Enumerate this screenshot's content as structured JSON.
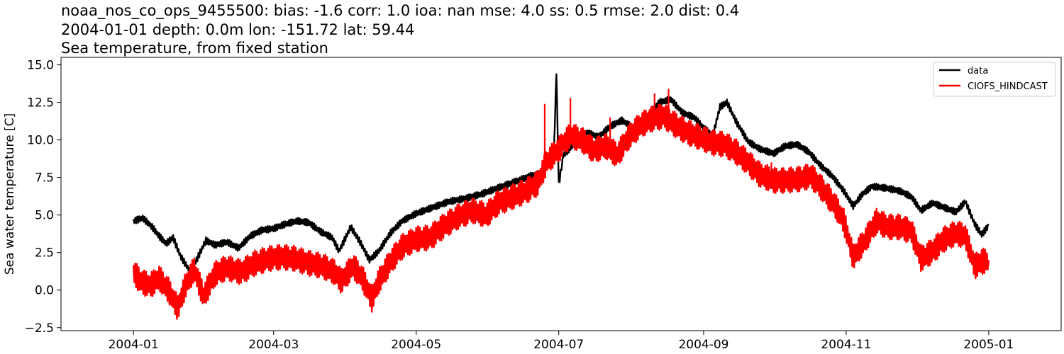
{
  "chart_data": {
    "type": "line",
    "title_lines": [
      "noaa_nos_co_ops_9455500: bias: -1.6  corr: 1.0  ioa: nan  mse: 4.0  ss: 0.5  rmse: 2.0  dist: 0.4",
      "2004-01-01 depth: 0.0m lon: -151.72 lat: 59.44",
      "Sea temperature, from fixed station"
    ],
    "xlabel": "",
    "ylabel": "Sea water temperature [C]",
    "xlim": [
      "2003-12-01",
      "2005-02-01"
    ],
    "ylim": [
      -2.7,
      15.5
    ],
    "x_ticks": [
      {
        "date": "2004-01-01",
        "label": "2004-01"
      },
      {
        "date": "2004-03-01",
        "label": "2004-03"
      },
      {
        "date": "2004-05-01",
        "label": "2004-05"
      },
      {
        "date": "2004-07-01",
        "label": "2004-07"
      },
      {
        "date": "2004-09-01",
        "label": "2004-09"
      },
      {
        "date": "2004-11-01",
        "label": "2004-11"
      },
      {
        "date": "2005-01-01",
        "label": "2005-01"
      }
    ],
    "y_ticks": [
      {
        "value": -2.5,
        "label": "−2.5"
      },
      {
        "value": 0.0,
        "label": "0.0"
      },
      {
        "value": 2.5,
        "label": "2.5"
      },
      {
        "value": 5.0,
        "label": "5.0"
      },
      {
        "value": 7.5,
        "label": "7.5"
      },
      {
        "value": 10.0,
        "label": "10.0"
      },
      {
        "value": 12.5,
        "label": "12.5"
      },
      {
        "value": 15.0,
        "label": "15.0"
      }
    ],
    "grid": false,
    "legend_position": "top-right",
    "series": [
      {
        "name": "data",
        "color": "#000000",
        "points": [
          [
            "2004-01-01",
            4.6
          ],
          [
            "2004-01-05",
            4.8
          ],
          [
            "2004-01-09",
            4.2
          ],
          [
            "2004-01-12",
            3.6
          ],
          [
            "2004-01-15",
            3.1
          ],
          [
            "2004-01-18",
            3.5
          ],
          [
            "2004-01-21",
            2.3
          ],
          [
            "2004-01-25",
            1.3
          ],
          [
            "2004-01-28",
            2.0
          ],
          [
            "2004-02-01",
            3.3
          ],
          [
            "2004-02-05",
            3.0
          ],
          [
            "2004-02-10",
            3.2
          ],
          [
            "2004-02-15",
            2.8
          ],
          [
            "2004-02-20",
            3.6
          ],
          [
            "2004-02-25",
            4.0
          ],
          [
            "2004-03-01",
            4.1
          ],
          [
            "2004-03-06",
            4.4
          ],
          [
            "2004-03-11",
            4.6
          ],
          [
            "2004-03-16",
            4.5
          ],
          [
            "2004-03-21",
            3.9
          ],
          [
            "2004-03-26",
            3.5
          ],
          [
            "2004-03-29",
            2.6
          ],
          [
            "2004-04-03",
            4.2
          ],
          [
            "2004-04-07",
            3.2
          ],
          [
            "2004-04-11",
            2.0
          ],
          [
            "2004-04-15",
            2.6
          ],
          [
            "2004-04-20",
            3.8
          ],
          [
            "2004-04-25",
            4.6
          ],
          [
            "2004-05-01",
            5.1
          ],
          [
            "2004-05-08",
            5.5
          ],
          [
            "2004-05-15",
            5.9
          ],
          [
            "2004-05-22",
            6.1
          ],
          [
            "2004-05-29",
            6.4
          ],
          [
            "2004-06-05",
            6.8
          ],
          [
            "2004-06-12",
            7.2
          ],
          [
            "2004-06-19",
            7.6
          ],
          [
            "2004-06-24",
            7.8
          ],
          [
            "2004-06-27",
            8.8
          ],
          [
            "2004-06-29",
            9.5
          ],
          [
            "2004-06-30",
            14.5
          ],
          [
            "2004-07-01",
            7.0
          ],
          [
            "2004-07-03",
            9.0
          ],
          [
            "2004-07-08",
            9.8
          ],
          [
            "2004-07-13",
            10.5
          ],
          [
            "2004-07-18",
            10.2
          ],
          [
            "2004-07-23",
            10.9
          ],
          [
            "2004-07-28",
            11.3
          ],
          [
            "2004-08-02",
            10.8
          ],
          [
            "2004-08-08",
            11.6
          ],
          [
            "2004-08-13",
            12.5
          ],
          [
            "2004-08-18",
            12.7
          ],
          [
            "2004-08-23",
            11.8
          ],
          [
            "2004-08-28",
            11.5
          ],
          [
            "2004-09-01",
            10.8
          ],
          [
            "2004-09-05",
            10.3
          ],
          [
            "2004-09-08",
            12.2
          ],
          [
            "2004-09-11",
            12.5
          ],
          [
            "2004-09-15",
            11.2
          ],
          [
            "2004-09-20",
            9.9
          ],
          [
            "2004-09-25",
            9.4
          ],
          [
            "2004-10-01",
            9.1
          ],
          [
            "2004-10-06",
            9.6
          ],
          [
            "2004-10-11",
            9.7
          ],
          [
            "2004-10-16",
            9.2
          ],
          [
            "2004-10-21",
            8.3
          ],
          [
            "2004-10-26",
            7.6
          ],
          [
            "2004-10-31",
            6.6
          ],
          [
            "2004-11-04",
            5.6
          ],
          [
            "2004-11-08",
            6.4
          ],
          [
            "2004-11-12",
            6.9
          ],
          [
            "2004-11-18",
            6.8
          ],
          [
            "2004-11-24",
            6.6
          ],
          [
            "2004-11-29",
            6.2
          ],
          [
            "2004-12-03",
            5.3
          ],
          [
            "2004-12-08",
            5.8
          ],
          [
            "2004-12-13",
            5.5
          ],
          [
            "2004-12-18",
            5.2
          ],
          [
            "2004-12-22",
            5.9
          ],
          [
            "2004-12-26",
            4.4
          ],
          [
            "2004-12-29",
            3.7
          ],
          [
            "2005-01-01",
            4.3
          ]
        ]
      },
      {
        "name": "CIOFS_HINDCAST",
        "color": "#ff0000",
        "points": [
          [
            "2004-01-01",
            1.2
          ],
          [
            "2004-01-04",
            0.6
          ],
          [
            "2004-01-08",
            0.3
          ],
          [
            "2004-01-12",
            0.8
          ],
          [
            "2004-01-16",
            0.0
          ],
          [
            "2004-01-20",
            -1.2
          ],
          [
            "2004-01-23",
            0.2
          ],
          [
            "2004-01-27",
            1.4
          ],
          [
            "2004-01-31",
            -0.4
          ],
          [
            "2004-02-05",
            1.1
          ],
          [
            "2004-02-10",
            1.5
          ],
          [
            "2004-02-16",
            1.2
          ],
          [
            "2004-02-22",
            1.8
          ],
          [
            "2004-02-28",
            2.1
          ],
          [
            "2004-03-05",
            2.2
          ],
          [
            "2004-03-10",
            2.1
          ],
          [
            "2004-03-16",
            1.8
          ],
          [
            "2004-03-22",
            1.6
          ],
          [
            "2004-03-27",
            1.2
          ],
          [
            "2004-03-30",
            0.6
          ],
          [
            "2004-04-04",
            1.6
          ],
          [
            "2004-04-08",
            0.8
          ],
          [
            "2004-04-12",
            -0.6
          ],
          [
            "2004-04-15",
            0.6
          ],
          [
            "2004-04-20",
            1.9
          ],
          [
            "2004-04-25",
            2.9
          ],
          [
            "2004-05-01",
            3.4
          ],
          [
            "2004-05-07",
            3.5
          ],
          [
            "2004-05-13",
            4.3
          ],
          [
            "2004-05-19",
            4.9
          ],
          [
            "2004-05-25",
            5.3
          ],
          [
            "2004-05-31",
            5.0
          ],
          [
            "2004-06-05",
            5.8
          ],
          [
            "2004-06-11",
            6.2
          ],
          [
            "2004-06-17",
            6.6
          ],
          [
            "2004-06-22",
            7.1
          ],
          [
            "2004-06-26",
            8.6
          ],
          [
            "2004-06-30",
            9.2
          ],
          [
            "2004-07-06",
            10.3
          ],
          [
            "2004-07-11",
            10.0
          ],
          [
            "2004-07-16",
            9.3
          ],
          [
            "2004-07-21",
            9.6
          ],
          [
            "2004-07-26",
            9.0
          ],
          [
            "2004-07-31",
            10.2
          ],
          [
            "2004-08-05",
            11.0
          ],
          [
            "2004-08-10",
            11.4
          ],
          [
            "2004-08-15",
            11.6
          ],
          [
            "2004-08-20",
            11.0
          ],
          [
            "2004-08-25",
            10.5
          ],
          [
            "2004-08-30",
            10.2
          ],
          [
            "2004-09-05",
            9.8
          ],
          [
            "2004-09-10",
            9.7
          ],
          [
            "2004-09-15",
            9.2
          ],
          [
            "2004-09-20",
            8.5
          ],
          [
            "2004-09-25",
            7.7
          ],
          [
            "2004-10-01",
            7.3
          ],
          [
            "2004-10-06",
            7.3
          ],
          [
            "2004-10-12",
            7.4
          ],
          [
            "2004-10-17",
            7.6
          ],
          [
            "2004-10-22",
            6.7
          ],
          [
            "2004-10-27",
            5.7
          ],
          [
            "2004-10-31",
            4.6
          ],
          [
            "2004-11-04",
            2.2
          ],
          [
            "2004-11-09",
            3.3
          ],
          [
            "2004-11-14",
            4.6
          ],
          [
            "2004-11-19",
            4.2
          ],
          [
            "2004-11-24",
            4.2
          ],
          [
            "2004-11-29",
            3.9
          ],
          [
            "2004-12-03",
            2.1
          ],
          [
            "2004-12-08",
            2.6
          ],
          [
            "2004-12-13",
            3.4
          ],
          [
            "2004-12-18",
            3.8
          ],
          [
            "2004-12-22",
            3.6
          ],
          [
            "2004-12-26",
            1.6
          ],
          [
            "2004-12-29",
            1.9
          ],
          [
            "2005-01-01",
            2.0
          ]
        ],
        "spikes": [
          [
            "2004-06-25",
            12.4
          ],
          [
            "2004-07-06",
            12.8
          ],
          [
            "2004-07-23",
            11.5
          ],
          [
            "2004-08-11",
            13.1
          ],
          [
            "2004-08-17",
            13.4
          ],
          [
            "2004-09-30",
            8.5
          ]
        ]
      }
    ]
  }
}
